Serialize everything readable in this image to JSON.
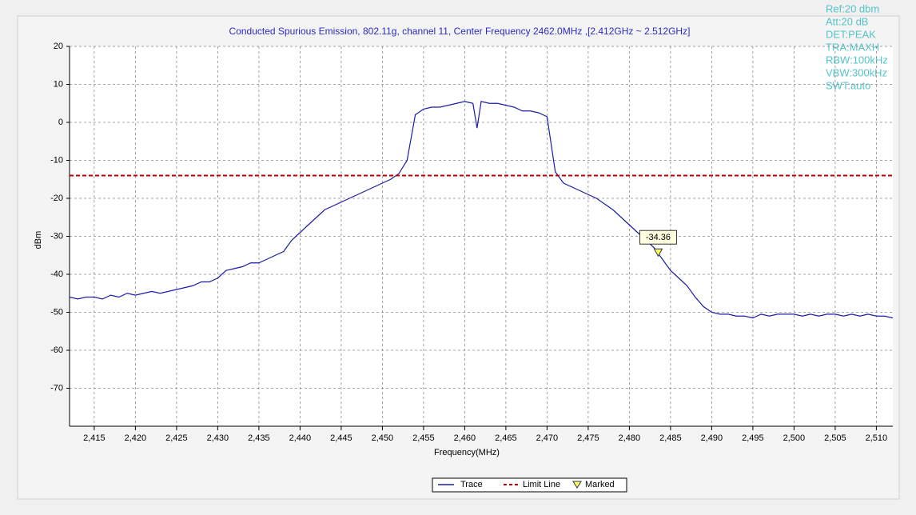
{
  "chart_data": {
    "type": "line",
    "title": "Conducted Spurious Emission, 802.11g, channel 11, Center Frequency 2462.0MHz ,[2.412GHz ~ 2.512GHz]",
    "xlabel": "Frequency(MHz)",
    "ylabel": "dBm",
    "info": [
      "Ref:20 dbm",
      "Att:20 dB",
      "DET:PEAK",
      "TRA:MAXH",
      "RBW:100kHz",
      "VBW:300kHz",
      "SWT:auto"
    ],
    "xlim": [
      2412,
      2512
    ],
    "ylim": [
      -80,
      20
    ],
    "xticks": [
      {
        "value": 2415,
        "label": "2,415"
      },
      {
        "value": 2420,
        "label": "2,420"
      },
      {
        "value": 2425,
        "label": "2,425"
      },
      {
        "value": 2430,
        "label": "2,430"
      },
      {
        "value": 2435,
        "label": "2,435"
      },
      {
        "value": 2440,
        "label": "2,440"
      },
      {
        "value": 2445,
        "label": "2,445"
      },
      {
        "value": 2450,
        "label": "2,450"
      },
      {
        "value": 2455,
        "label": "2,455"
      },
      {
        "value": 2460,
        "label": "2,460"
      },
      {
        "value": 2465,
        "label": "2,465"
      },
      {
        "value": 2470,
        "label": "2,470"
      },
      {
        "value": 2475,
        "label": "2,475"
      },
      {
        "value": 2480,
        "label": "2,480"
      },
      {
        "value": 2485,
        "label": "2,485"
      },
      {
        "value": 2490,
        "label": "2,490"
      },
      {
        "value": 2495,
        "label": "2,495"
      },
      {
        "value": 2500,
        "label": "2,500"
      },
      {
        "value": 2505,
        "label": "2,505"
      },
      {
        "value": 2510,
        "label": "2,510"
      }
    ],
    "yticks": [
      20,
      10,
      0,
      -10,
      -20,
      -30,
      -40,
      -50,
      -60,
      -70
    ],
    "grid": true,
    "x": [
      2412,
      2413,
      2414,
      2415,
      2416,
      2417,
      2418,
      2419,
      2420,
      2421,
      2422,
      2423,
      2424,
      2425,
      2426,
      2427,
      2428,
      2429,
      2430,
      2431,
      2432,
      2433,
      2434,
      2435,
      2436,
      2437,
      2438,
      2439,
      2440,
      2441,
      2442,
      2443,
      2444,
      2445,
      2446,
      2447,
      2448,
      2449,
      2450,
      2451,
      2452,
      2453,
      2454,
      2455,
      2456,
      2457,
      2458,
      2459,
      2460,
      2461,
      2461.5,
      2462,
      2463,
      2464,
      2465,
      2466,
      2467,
      2468,
      2469,
      2470,
      2471,
      2472,
      2473,
      2474,
      2475,
      2476,
      2477,
      2478,
      2479,
      2480,
      2481,
      2482,
      2483,
      2484,
      2485,
      2486,
      2487,
      2488,
      2489,
      2490,
      2491,
      2492,
      2493,
      2494,
      2495,
      2496,
      2497,
      2498,
      2499,
      2500,
      2501,
      2502,
      2503,
      2504,
      2505,
      2506,
      2507,
      2508,
      2509,
      2510,
      2511,
      2512
    ],
    "series": [
      {
        "name": "Trace",
        "color": "#1c1ca8",
        "values": [
          -46,
          -46.5,
          -46,
          -46,
          -46.5,
          -45.5,
          -46,
          -45,
          -45.5,
          -45,
          -44.5,
          -45,
          -44.5,
          -44,
          -43.5,
          -43,
          -42,
          -42,
          -41,
          -39,
          -38.5,
          -38,
          -37,
          -37,
          -36,
          -35,
          -34,
          -31,
          -29,
          -27,
          -25,
          -23,
          -22,
          -21,
          -20,
          -19,
          -18,
          -17,
          -16,
          -15,
          -13.5,
          -10,
          2,
          3.5,
          4,
          4,
          4.5,
          5,
          5.5,
          5,
          -1.5,
          5.5,
          5,
          5,
          4.5,
          4,
          3,
          3,
          2.5,
          1.5,
          -13,
          -16,
          -17,
          -18,
          -19,
          -20,
          -21.5,
          -23,
          -25,
          -27,
          -29,
          -31,
          -33,
          -36,
          -39,
          -41,
          -43,
          -46,
          -48.5,
          -50,
          -50.5,
          -50.5,
          -51,
          -51,
          -51.5,
          -50.5,
          -51,
          -50.5,
          -50.5,
          -50.5,
          -51,
          -50.5,
          -51,
          -50.5,
          -50.5,
          -51,
          -50.5,
          -51,
          -50.5,
          -51,
          -51,
          -51.5
        ]
      }
    ],
    "limit_line": {
      "name": "Limit Line",
      "value": -14,
      "color": "#c00000"
    },
    "marker": {
      "name": "Marked",
      "x": 2483.5,
      "y": -34.36,
      "color": "#ffff66"
    }
  }
}
